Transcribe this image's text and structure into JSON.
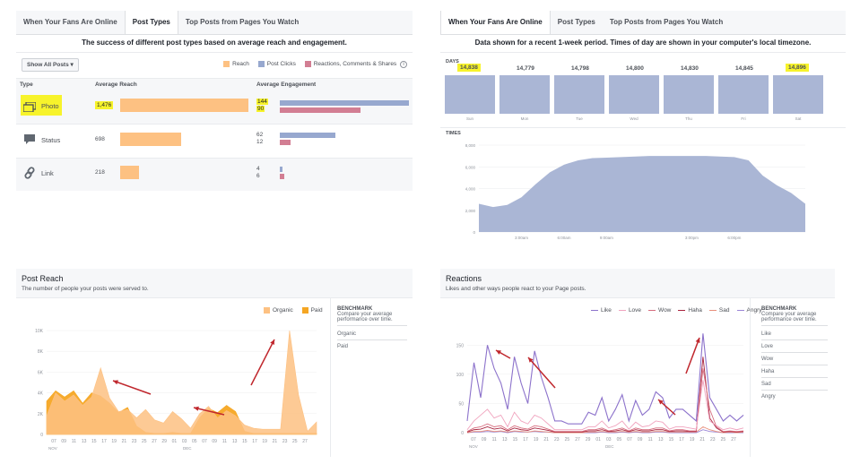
{
  "panel1": {
    "tabs": [
      "When Your Fans Are Online",
      "Post Types",
      "Top Posts from Pages You Watch"
    ],
    "active_tab": 1,
    "subtitle": "The success of different post types based on average reach and engagement.",
    "filter_label": "Show All Posts",
    "legend": [
      {
        "label": "Reach",
        "color": "#fdc182"
      },
      {
        "label": "Post Clicks",
        "color": "#97a8cf"
      },
      {
        "label": "Reactions, Comments & Shares",
        "color": "#d27e93"
      }
    ],
    "columns": [
      "Type",
      "Average Reach",
      "Average Engagement"
    ],
    "rows": [
      {
        "type": "Photo",
        "icon": "photo-icon",
        "reach": "1,476",
        "reach_value": 1476,
        "clicks": "144",
        "clicks_value": 144,
        "reactions": "90",
        "reactions_value": 90
      },
      {
        "type": "Status",
        "icon": "status-icon",
        "reach": "698",
        "reach_value": 698,
        "clicks": "62",
        "clicks_value": 62,
        "reactions": "12",
        "reactions_value": 12
      },
      {
        "type": "Link",
        "icon": "link-icon",
        "reach": "218",
        "reach_value": 218,
        "clicks": "4",
        "clicks_value": 4,
        "reactions": "6",
        "reactions_value": 6
      }
    ]
  },
  "panel2": {
    "tabs": [
      "When Your Fans Are Online",
      "Post Types",
      "Top Posts from Pages You Watch"
    ],
    "active_tab": 0,
    "subtitle": "Data shown for a recent 1-week period. Times of day are shown in your computer's local timezone.",
    "days_label": "DAYS",
    "times_label": "TIMES",
    "days": [
      {
        "day": "Sun",
        "value": "14,838",
        "highlight": true
      },
      {
        "day": "Mon",
        "value": "14,779",
        "highlight": false
      },
      {
        "day": "Tue",
        "value": "14,798",
        "highlight": false
      },
      {
        "day": "Wed",
        "value": "14,800",
        "highlight": false
      },
      {
        "day": "Thu",
        "value": "14,830",
        "highlight": false
      },
      {
        "day": "Fri",
        "value": "14,845",
        "highlight": false
      },
      {
        "day": "Sat",
        "value": "14,896",
        "highlight": true
      }
    ],
    "times_y_ticks": [
      "8,000",
      "6,000",
      "4,000",
      "2,000",
      "0"
    ],
    "times_x_ticks": [
      "3:00am",
      "6:00am",
      "9:00am",
      "3:00pm",
      "6:00pm"
    ],
    "bar_color": "#aab6d5"
  },
  "panel3": {
    "title": "Post Reach",
    "subtitle": "The number of people your posts were served to.",
    "legend": [
      {
        "label": "Organic",
        "color": "#fdc182"
      },
      {
        "label": "Paid",
        "color": "#f5a623"
      }
    ],
    "benchmark": {
      "heading": "BENCHMARK",
      "text": "Compare your average performance over time.",
      "items": [
        "Organic",
        "Paid"
      ]
    },
    "y_ticks": [
      "10K",
      "8K",
      "6K",
      "4K",
      "2K",
      "0"
    ],
    "x_ticks": [
      "07",
      "09",
      "11",
      "13",
      "15",
      "17",
      "19",
      "21",
      "23",
      "25",
      "27",
      "29",
      "01",
      "03",
      "05",
      "07",
      "09",
      "11",
      "13",
      "15",
      "17",
      "19",
      "21",
      "23",
      "25",
      "27"
    ],
    "months": [
      "NOV",
      "DEC"
    ],
    "arrow_color": "#c0272d"
  },
  "panel4": {
    "title": "Reactions",
    "subtitle": "Likes and other ways people react to your Page posts.",
    "legend": [
      {
        "label": "Like",
        "color": "#8c72cb"
      },
      {
        "label": "Love",
        "color": "#f0a3be"
      },
      {
        "label": "Wow",
        "color": "#d66c7e"
      },
      {
        "label": "Haha",
        "color": "#a8233d"
      },
      {
        "label": "Sad",
        "color": "#e88f7b"
      },
      {
        "label": "Angry",
        "color": "#9a85d6"
      }
    ],
    "benchmark": {
      "heading": "BENCHMARK",
      "text": "Compare your average performance over time.",
      "items": [
        "Like",
        "Love",
        "Wow",
        "Haha",
        "Sad",
        "Angry"
      ]
    },
    "y_ticks": [
      "150",
      "100",
      "50",
      "0"
    ],
    "x_ticks": [
      "07",
      "09",
      "11",
      "13",
      "15",
      "17",
      "19",
      "21",
      "23",
      "25",
      "27",
      "29",
      "01",
      "03",
      "05",
      "07",
      "09",
      "11",
      "13",
      "15",
      "17",
      "19",
      "21",
      "23",
      "25",
      "27"
    ],
    "months": [
      "NOV",
      "DEC"
    ]
  },
  "chart_data": [
    {
      "type": "bar",
      "categories": [
        "Sun",
        "Mon",
        "Tue",
        "Wed",
        "Thu",
        "Fri",
        "Sat"
      ],
      "values": [
        14838,
        14779,
        14798,
        14800,
        14830,
        14845,
        14896
      ]
    },
    {
      "type": "area",
      "x": [
        0,
        1,
        2,
        3,
        4,
        5,
        6,
        7,
        8,
        9,
        10,
        11,
        12,
        13,
        14,
        15,
        16,
        17,
        18,
        19,
        20,
        21,
        22,
        23
      ],
      "values": [
        2600,
        2300,
        2500,
        3200,
        4400,
        5500,
        6200,
        6600,
        6800,
        6850,
        6900,
        6950,
        7000,
        7000,
        7000,
        7000,
        7000,
        6950,
        6900,
        6600,
        5200,
        4300,
        3600,
        2600
      ],
      "ylim": [
        0,
        8000
      ]
    },
    {
      "type": "area",
      "series": [
        {
          "name": "Organic",
          "values": [
            1800,
            4000,
            3200,
            3800,
            2800,
            3600,
            6400,
            3500,
            2200,
            2400,
            1600,
            2400,
            1400,
            1100,
            2200,
            1500,
            600,
            2000,
            2700,
            1600,
            2300,
            1800,
            900,
            600,
            500,
            500,
            500,
            10000,
            3800,
            300,
            1200
          ]
        },
        {
          "name": "Paid",
          "values": [
            3200,
            4200,
            3600,
            4200,
            3000,
            4000,
            3700,
            3000,
            2100,
            2600,
            800,
            200,
            100,
            100,
            200,
            100,
            100,
            1600,
            2500,
            2100,
            2800,
            2200,
            300,
            100,
            100,
            100,
            100,
            100,
            100,
            100,
            100
          ]
        }
      ],
      "ylim": [
        0,
        10000
      ]
    },
    {
      "type": "line",
      "series": [
        {
          "name": "Like",
          "values": [
            20,
            120,
            60,
            150,
            110,
            85,
            40,
            130,
            85,
            50,
            140,
            95,
            60,
            20,
            20,
            15,
            15,
            15,
            35,
            30,
            60,
            20,
            40,
            65,
            20,
            55,
            30,
            40,
            70,
            60,
            25,
            40,
            40,
            30,
            20,
            170,
            60,
            40,
            20,
            30,
            20,
            30
          ]
        },
        {
          "name": "Love",
          "values": [
            5,
            20,
            30,
            40,
            25,
            30,
            10,
            35,
            20,
            15,
            30,
            25,
            15,
            5,
            5,
            5,
            5,
            5,
            10,
            10,
            20,
            8,
            12,
            20,
            6,
            18,
            10,
            12,
            20,
            18,
            6,
            10,
            10,
            8,
            6,
            90,
            20,
            12,
            5,
            8,
            5,
            8
          ]
        },
        {
          "name": "Wow",
          "values": [
            2,
            8,
            10,
            15,
            10,
            12,
            5,
            12,
            8,
            6,
            12,
            10,
            6,
            2,
            2,
            2,
            2,
            2,
            5,
            5,
            8,
            3,
            5,
            8,
            3,
            8,
            5,
            5,
            8,
            8,
            3,
            5,
            5,
            3,
            3,
            110,
            40,
            10,
            2,
            3,
            2,
            3
          ]
        },
        {
          "name": "Haha",
          "values": [
            1,
            5,
            6,
            10,
            6,
            8,
            3,
            8,
            5,
            4,
            8,
            6,
            4,
            1,
            1,
            1,
            1,
            1,
            3,
            3,
            5,
            2,
            3,
            5,
            2,
            5,
            3,
            3,
            5,
            5,
            2,
            3,
            3,
            2,
            2,
            130,
            25,
            8,
            1,
            2,
            1,
            2
          ]
        },
        {
          "name": "Sad",
          "values": [
            0,
            2,
            2,
            4,
            2,
            3,
            1,
            3,
            2,
            1,
            3,
            2,
            1,
            0,
            0,
            0,
            0,
            0,
            1,
            1,
            2,
            1,
            1,
            2,
            1,
            2,
            1,
            1,
            2,
            2,
            1,
            1,
            1,
            1,
            1,
            10,
            5,
            2,
            0,
            1,
            0,
            1
          ]
        },
        {
          "name": "Angry",
          "values": [
            0,
            1,
            1,
            2,
            1,
            2,
            0,
            2,
            1,
            1,
            2,
            1,
            1,
            0,
            0,
            0,
            0,
            0,
            0,
            0,
            1,
            0,
            0,
            1,
            0,
            1,
            0,
            0,
            1,
            1,
            0,
            0,
            0,
            0,
            0,
            5,
            2,
            1,
            0,
            0,
            0,
            0
          ]
        }
      ],
      "ylim": [
        0,
        175
      ]
    }
  ]
}
